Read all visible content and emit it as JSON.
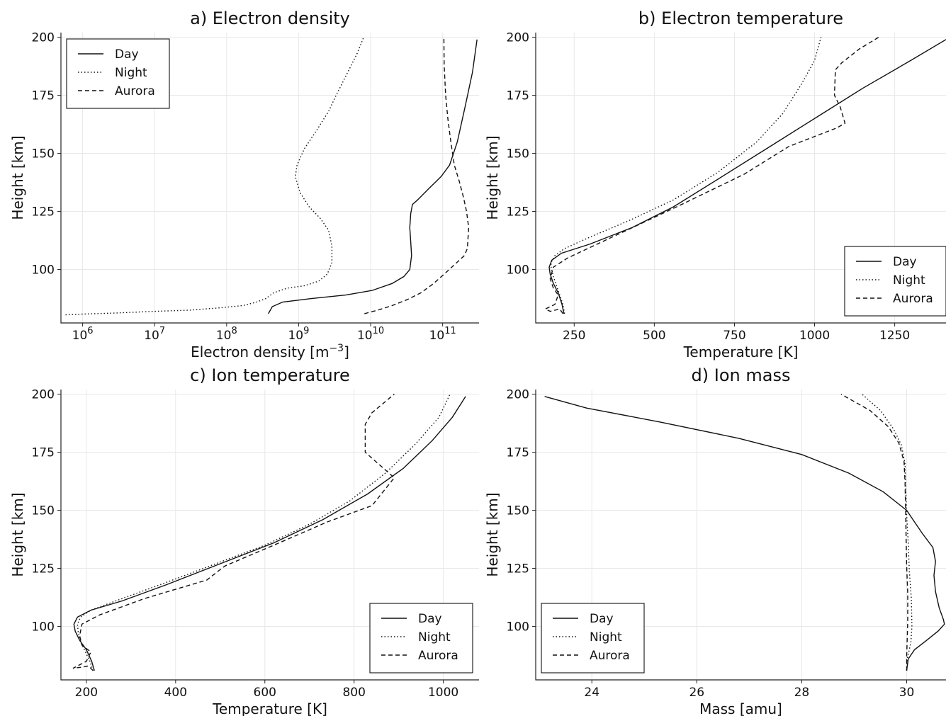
{
  "chart_data": [
    {
      "type": "line",
      "title": "a) Electron density",
      "xlabel": "Electron density [m$^{-3}$]",
      "ylabel": "Height [km]",
      "xscale": "log",
      "xlim": [
        500000.0,
        320000000000.0
      ],
      "ylim": [
        77,
        202
      ],
      "xticks": [
        1000000.0,
        10000000.0,
        100000000.0,
        1000000000.0,
        10000000000.0,
        100000000000.0
      ],
      "xtick_labels": [
        [
          "10",
          "6"
        ],
        [
          "10",
          "7"
        ],
        [
          "10",
          "8"
        ],
        [
          "10",
          "9"
        ],
        [
          "10",
          "10"
        ],
        [
          "10",
          "11"
        ]
      ],
      "yticks": [
        100,
        125,
        150,
        175,
        200
      ],
      "ytick_labels": [
        "100",
        "125",
        "150",
        "175",
        "200"
      ],
      "grid": true,
      "legend": "upper-left",
      "series": [
        {
          "name": "Day",
          "style": "solid",
          "x": [
            380000000.0,
            430000000.0,
            600000000.0,
            1500000000.0,
            4500000000.0,
            10500000000.0,
            20000000000.0,
            29000000000.0,
            35000000000.0,
            37000000000.0,
            36000000000.0,
            35000000000.0,
            36000000000.0,
            38000000000.0,
            45000000000.0,
            65000000000.0,
            95000000000.0,
            125000000000.0,
            160000000000.0,
            205000000000.0,
            260000000000.0,
            300000000000.0
          ],
          "y": [
            81,
            84,
            86,
            87.5,
            89,
            91,
            94,
            97,
            100,
            106,
            112,
            118,
            124,
            128,
            130,
            135,
            140,
            145,
            155,
            170,
            185,
            199
          ]
        },
        {
          "name": "Night",
          "style": "dotted",
          "x": [
            580000.0,
            1000000.0,
            3000000.0,
            10000000.0,
            30000000.0,
            80000000.0,
            170000000.0,
            260000000.0,
            350000000.0,
            450000000.0,
            700000000.0,
            1200000000.0,
            1900000000.0,
            2500000000.0,
            2900000000.0,
            2900000000.0,
            2600000000.0,
            2000000000.0,
            1400000000.0,
            1050000000.0,
            900000000.0,
            950000000.0,
            1200000000.0,
            1700000000.0,
            2600000000.0,
            3200000000.0,
            4000000000.0,
            5000000000.0,
            6500000000.0,
            8000000000.0
          ],
          "y": [
            80.5,
            80.8,
            81.3,
            82,
            82.5,
            83.5,
            84.5,
            86,
            87.5,
            90,
            92,
            93,
            95,
            98,
            103,
            110,
            117,
            122,
            127,
            133,
            140,
            145,
            152,
            159,
            168,
            174,
            180,
            186,
            193,
            200
          ]
        },
        {
          "name": "Aurora",
          "style": "dashed",
          "x": [
            8200000000.0,
            12500000000.0,
            20000000000.0,
            32000000000.0,
            50000000000.0,
            75000000000.0,
            105000000000.0,
            145000000000.0,
            200000000000.0,
            220000000000.0,
            230000000000.0,
            215000000000.0,
            195000000000.0,
            170000000000.0,
            145000000000.0,
            130000000000.0,
            118000000000.0,
            110000000000.0,
            105000000000.0,
            104000000000.0
          ],
          "y": [
            81,
            82.5,
            84.5,
            87,
            90,
            94,
            98,
            102,
            106,
            109,
            118,
            125,
            131,
            138,
            145,
            155,
            165,
            175,
            188,
            200
          ]
        }
      ]
    },
    {
      "type": "line",
      "title": "b) Electron temperature",
      "xlabel": "Temperature [K]",
      "ylabel": "Height [km]",
      "xlim": [
        130,
        1410
      ],
      "ylim": [
        77,
        202
      ],
      "xticks": [
        250,
        500,
        750,
        1000,
        1250
      ],
      "xtick_labels": [
        "250",
        "500",
        "750",
        "1000",
        "1250"
      ],
      "yticks": [
        100,
        125,
        150,
        175,
        200
      ],
      "ytick_labels": [
        "100",
        "125",
        "150",
        "175",
        "200"
      ],
      "grid": true,
      "legend": "lower-right",
      "series": [
        {
          "name": "Day",
          "style": "solid",
          "x": [
            218,
            212,
            200,
            185,
            175,
            172,
            180,
            210,
            300,
            430,
            560,
            700,
            850,
            1000,
            1150,
            1300,
            1410
          ],
          "y": [
            81,
            85,
            90,
            94,
            98,
            101,
            104,
            107,
            111,
            118,
            127,
            139,
            152,
            165,
            178,
            190,
            199
          ]
        },
        {
          "name": "Night",
          "style": "dotted",
          "x": [
            220,
            215,
            205,
            195,
            185,
            178,
            178,
            190,
            220,
            300,
            420,
            560,
            700,
            820,
            900,
            960,
            1000,
            1020
          ],
          "y": [
            81,
            85,
            89,
            93,
            97,
            101,
            103,
            106,
            109,
            114,
            121,
            130,
            142,
            155,
            167,
            180,
            190,
            200
          ]
        },
        {
          "name": "Aurora",
          "style": "dashed",
          "x": [
            215,
            205,
            190,
            175,
            160,
            190,
            200,
            185,
            175,
            185,
            230,
            400,
            570,
            780,
            920,
            1070,
            1095,
            1080,
            1062,
            1065,
            1085,
            1140,
            1200
          ],
          "y": [
            81,
            83,
            82.5,
            82,
            83,
            85,
            89,
            92,
            96,
            101,
            105,
            116,
            127,
            141,
            153,
            161,
            163,
            170,
            175,
            186,
            189,
            195,
            200
          ]
        }
      ]
    },
    {
      "type": "line",
      "title": "c) Ion temperature",
      "xlabel": "Temperature [K]",
      "ylabel": "Height [km]",
      "xlim": [
        143,
        1080
      ],
      "ylim": [
        77,
        202
      ],
      "xticks": [
        200,
        400,
        600,
        800,
        1000
      ],
      "xtick_labels": [
        "200",
        "400",
        "600",
        "800",
        "1000"
      ],
      "yticks": [
        100,
        125,
        150,
        175,
        200
      ],
      "ytick_labels": [
        "100",
        "125",
        "150",
        "175",
        "200"
      ],
      "grid": true,
      "legend": "lower-right",
      "series": [
        {
          "name": "Day",
          "style": "solid",
          "x": [
            218,
            212,
            200,
            185,
            175,
            172,
            180,
            210,
            280,
            380,
            500,
            620,
            730,
            830,
            910,
            975,
            1020,
            1050
          ],
          "y": [
            81,
            85,
            90,
            94,
            98,
            101,
            104,
            107,
            111,
            118,
            127,
            136,
            146,
            157,
            168,
            180,
            190,
            199
          ]
        },
        {
          "name": "Night",
          "style": "dotted",
          "x": [
            215,
            208,
            198,
            188,
            182,
            180,
            187,
            210,
            280,
            380,
            490,
            600,
            700,
            790,
            870,
            935,
            990,
            1015
          ],
          "y": [
            81,
            85,
            89,
            93,
            97,
            101,
            104,
            107,
            112,
            119,
            127,
            135,
            144,
            154,
            166,
            178,
            190,
            200
          ]
        },
        {
          "name": "Aurora",
          "style": "dashed",
          "x": [
            215,
            205,
            190,
            170,
            200,
            210,
            190,
            185,
            190,
            230,
            330,
            470,
            510,
            620,
            740,
            840,
            890,
            825,
            825,
            840,
            890
          ],
          "y": [
            81,
            83,
            82.5,
            82,
            85,
            89,
            92,
            96,
            101,
            105,
            112,
            120,
            126,
            135,
            145,
            152,
            164,
            175,
            187,
            192,
            200
          ]
        }
      ]
    },
    {
      "type": "line",
      "title": "d) Ion mass",
      "xlabel": "Mass [amu]",
      "ylabel": "Height [km]",
      "xlim": [
        22.93,
        30.75
      ],
      "ylim": [
        77,
        202
      ],
      "xticks": [
        24,
        26,
        28,
        30
      ],
      "xtick_labels": [
        "24",
        "26",
        "28",
        "30"
      ],
      "yticks": [
        100,
        125,
        150,
        175,
        200
      ],
      "ytick_labels": [
        "100",
        "125",
        "150",
        "175",
        "200"
      ],
      "grid": true,
      "legend": "lower-left",
      "series": [
        {
          "name": "Day",
          "style": "solid",
          "x": [
            30.0,
            30.03,
            30.15,
            30.38,
            30.6,
            30.72,
            30.7,
            30.62,
            30.55,
            30.52,
            30.55,
            30.5,
            30.3,
            30.0,
            29.55,
            28.9,
            28.0,
            26.8,
            25.3,
            23.9,
            23.1
          ],
          "y": [
            81,
            86,
            90,
            94,
            98,
            101,
            103,
            108,
            115,
            122,
            128,
            134,
            140,
            150,
            158,
            166,
            174,
            181,
            188,
            194,
            199
          ]
        },
        {
          "name": "Night",
          "style": "dotted",
          "x": [
            30.0,
            30.01,
            30.08,
            30.1,
            30.09,
            30.05,
            30.03,
            30.0,
            29.98,
            29.97,
            29.9,
            29.75,
            29.5,
            29.15
          ],
          "y": [
            81,
            86,
            93,
            100,
            112,
            124,
            136,
            148,
            160,
            170,
            178,
            185,
            193,
            200
          ]
        },
        {
          "name": "Aurora",
          "style": "dashed",
          "x": [
            30.0,
            30.0,
            30.01,
            30.02,
            30.02,
            30.0,
            29.99,
            29.98,
            29.97,
            29.95,
            29.85,
            29.65,
            29.3,
            28.75
          ],
          "y": [
            81,
            87,
            94,
            102,
            114,
            126,
            138,
            150,
            162,
            171,
            179,
            186,
            193,
            200
          ]
        }
      ]
    }
  ]
}
